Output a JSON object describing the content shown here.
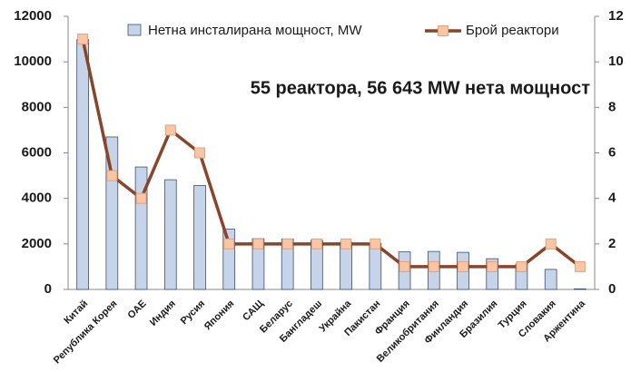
{
  "chart_data": {
    "type": "bar_line",
    "annotation": "55 реактора, 56 643 MW нета мощност",
    "categories": [
      "Китай",
      "Република Корея",
      "ОАЕ",
      "Индия",
      "Русия",
      "Япония",
      "САЩ",
      "Беларус",
      "Бангладеш",
      "Украйна",
      "Пакистан",
      "Франция",
      "Великобритания",
      "Финландия",
      "Бразилия",
      "Турция",
      "Словакия",
      "Аржентина"
    ],
    "series": [
      {
        "name": "Нетна инсталирана мощност, MW",
        "type": "bar",
        "color": "#c6d4ea",
        "values": [
          10980,
          6700,
          5380,
          4820,
          4570,
          2650,
          2230,
          2220,
          2160,
          2070,
          2030,
          1650,
          1670,
          1630,
          1350,
          1110,
          880,
          25
        ]
      },
      {
        "name": "Брой реактори",
        "type": "line",
        "axis": "y2",
        "color": "#8b4426",
        "marker_color": "#f8c6a2",
        "values": [
          11,
          5,
          4,
          7,
          6,
          2,
          2,
          2,
          2,
          2,
          2,
          1,
          1,
          1,
          1,
          1,
          2,
          1
        ]
      }
    ],
    "ylim": [
      0,
      12000
    ],
    "yticks": [
      0,
      2000,
      4000,
      6000,
      8000,
      10000,
      12000
    ],
    "y2lim": [
      0,
      12
    ],
    "y2ticks": [
      0,
      2,
      4,
      6,
      8,
      10,
      12
    ]
  }
}
